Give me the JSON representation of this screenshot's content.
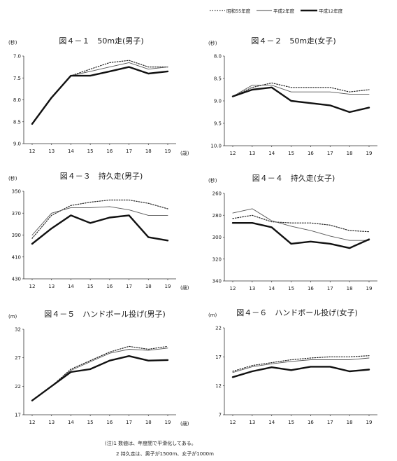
{
  "legend": [
    {
      "name": "昭和55年度",
      "style": "dotted"
    },
    {
      "name": "平成2年度",
      "style": "thin"
    },
    {
      "name": "平成12年度",
      "style": "thick"
    }
  ],
  "notes": [
    "(注)1 数値は、年度間で平滑化してある。",
    "2 持久走は、男子が1500m、女子が1000m"
  ],
  "chart_data": [
    {
      "type": "line",
      "title": "図４－１　50m走(男子)",
      "ylabel": "(秒)",
      "xlabel": "(歳)",
      "x": [
        12,
        13,
        14,
        15,
        16,
        17,
        18,
        19
      ],
      "ylim": [
        9.0,
        7.0
      ],
      "inverted": true,
      "yticks": [
        "7.0",
        "7.5",
        "8.0",
        "8.5",
        "9.0"
      ],
      "series": [
        {
          "name": "昭和55年度",
          "values": [
            8.55,
            7.95,
            7.45,
            7.3,
            7.15,
            7.1,
            7.25,
            7.25
          ]
        },
        {
          "name": "平成2年度",
          "values": [
            8.55,
            7.95,
            7.45,
            7.35,
            7.25,
            7.15,
            7.3,
            7.25
          ]
        },
        {
          "name": "平成12年度",
          "values": [
            8.55,
            7.95,
            7.45,
            7.45,
            7.35,
            7.25,
            7.4,
            7.35
          ]
        }
      ]
    },
    {
      "type": "line",
      "title": "図４－２　50m走(女子)",
      "ylabel": "(秒)",
      "xlabel": "",
      "x": [
        12,
        13,
        14,
        15,
        16,
        17,
        18,
        19
      ],
      "ylim": [
        10.0,
        8.0
      ],
      "inverted": true,
      "yticks": [
        "8.0",
        "8.5",
        "9.0",
        "9.5",
        "10.0"
      ],
      "series": [
        {
          "name": "昭和55年度",
          "values": [
            8.9,
            8.7,
            8.6,
            8.7,
            8.7,
            8.7,
            8.8,
            8.75
          ]
        },
        {
          "name": "平成2年度",
          "values": [
            8.9,
            8.65,
            8.65,
            8.8,
            8.8,
            8.8,
            8.85,
            8.85
          ]
        },
        {
          "name": "平成12年度",
          "values": [
            8.9,
            8.75,
            8.7,
            9.0,
            9.05,
            9.1,
            9.25,
            9.15
          ]
        }
      ]
    },
    {
      "type": "line",
      "title": "図４－３　持久走(男子)",
      "ylabel": "(秒)",
      "xlabel": "(歳)",
      "x": [
        12,
        13,
        14,
        15,
        16,
        17,
        18,
        19
      ],
      "ylim": [
        430,
        350
      ],
      "inverted": true,
      "yticks": [
        "350",
        "370",
        "390",
        "410",
        "430"
      ],
      "series": [
        {
          "name": "昭和55年度",
          "values": [
            393,
            372,
            363,
            360,
            358,
            358,
            361,
            366
          ]
        },
        {
          "name": "平成2年度",
          "values": [
            390,
            370,
            365,
            365,
            364,
            367,
            372,
            372
          ]
        },
        {
          "name": "平成12年度",
          "values": [
            398,
            384,
            372,
            379,
            374,
            372,
            392,
            395
          ]
        }
      ]
    },
    {
      "type": "line",
      "title": "図４－４　持久走(女子)",
      "ylabel": "(秒)",
      "xlabel": "",
      "x": [
        12,
        13,
        14,
        15,
        16,
        17,
        18,
        19
      ],
      "ylim": [
        340,
        260
      ],
      "inverted": true,
      "yticks": [
        "260",
        "280",
        "300",
        "320",
        "340"
      ],
      "series": [
        {
          "name": "昭和55年度",
          "values": [
            283,
            280,
            286,
            287,
            287,
            289,
            294,
            295
          ]
        },
        {
          "name": "平成2年度",
          "values": [
            278,
            274,
            285,
            290,
            294,
            299,
            303,
            303
          ]
        },
        {
          "name": "平成12年度",
          "values": [
            287,
            287,
            291,
            306,
            304,
            306,
            310,
            302
          ]
        }
      ]
    },
    {
      "type": "line",
      "title": "図４－５　ハンドボール投げ(男子)",
      "ylabel": "(m)",
      "xlabel": "(歳)",
      "x": [
        12,
        13,
        14,
        15,
        16,
        17,
        18,
        19
      ],
      "ylim": [
        17,
        32
      ],
      "inverted": false,
      "yticks": [
        "17",
        "22",
        "27",
        "32"
      ],
      "series": [
        {
          "name": "昭和55年度",
          "values": [
            19.5,
            22.0,
            25.0,
            26.5,
            28.0,
            29.0,
            28.5,
            29.0
          ]
        },
        {
          "name": "平成2年度",
          "values": [
            19.5,
            22.0,
            24.8,
            26.3,
            27.8,
            28.5,
            28.3,
            28.7
          ]
        },
        {
          "name": "平成12年度",
          "values": [
            19.5,
            22.0,
            24.5,
            25.0,
            26.5,
            27.3,
            26.5,
            26.6
          ]
        }
      ]
    },
    {
      "type": "line",
      "title": "図４－６　ハンドボール投げ(女子)",
      "ylabel": "(m)",
      "xlabel": "",
      "x": [
        12,
        13,
        14,
        15,
        16,
        17,
        18,
        19
      ],
      "ylim": [
        7,
        22
      ],
      "inverted": false,
      "yticks": [
        "7",
        "12",
        "17",
        "22"
      ],
      "series": [
        {
          "name": "昭和55年度",
          "values": [
            14.5,
            15.5,
            16.0,
            16.5,
            16.8,
            17.0,
            17.0,
            17.2
          ]
        },
        {
          "name": "平成2年度",
          "values": [
            14.3,
            15.3,
            15.8,
            16.2,
            16.5,
            16.5,
            16.5,
            16.8
          ]
        },
        {
          "name": "平成12年度",
          "values": [
            13.5,
            14.5,
            15.2,
            14.7,
            15.3,
            15.3,
            14.5,
            14.8
          ]
        }
      ]
    }
  ]
}
